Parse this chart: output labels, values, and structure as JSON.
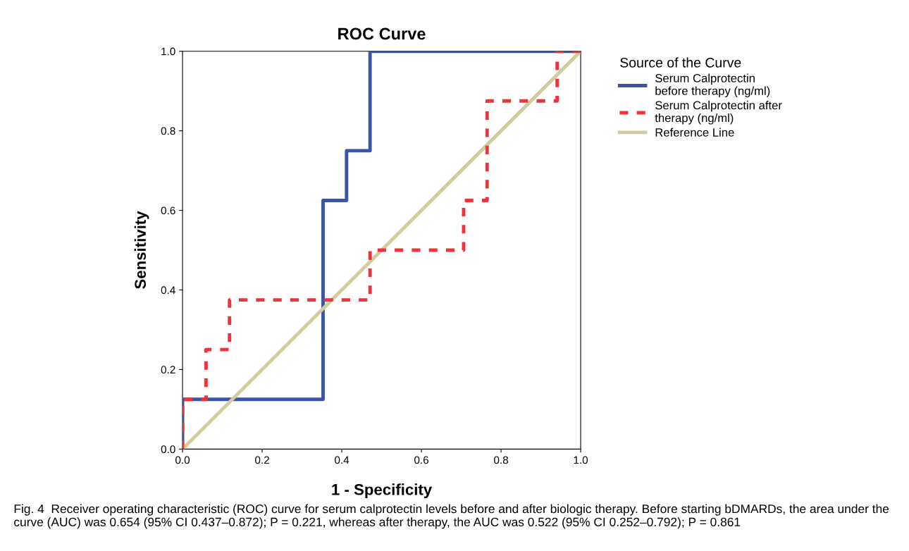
{
  "chart_data": {
    "type": "line",
    "title": "ROC Curve",
    "xlabel": "1 - Specificity",
    "ylabel": "Sensitivity",
    "legend_title": "Source of the Curve",
    "legend": "top right",
    "xlim": [
      0,
      1
    ],
    "ylim": [
      0,
      1
    ],
    "xticks": [
      {
        "value": 0,
        "label": "0.0"
      },
      {
        "value": 0.2,
        "label": "0.2"
      },
      {
        "value": 0.4,
        "label": "0.4"
      },
      {
        "value": 0.6,
        "label": "0.6"
      },
      {
        "value": 0.8,
        "label": "0.8"
      },
      {
        "value": 1,
        "label": "1.0"
      }
    ],
    "yticks": [
      {
        "value": 0,
        "label": "0.0"
      },
      {
        "value": 0.2,
        "label": "0.2"
      },
      {
        "value": 0.4,
        "label": "0.4"
      },
      {
        "value": 0.6,
        "label": "0.6"
      },
      {
        "value": 0.8,
        "label": "0.8"
      },
      {
        "value": 1,
        "label": "1.0"
      }
    ],
    "grid": false,
    "series": [
      {
        "name": "Serum Calprotectin\nbefore therapy (ng/ml)",
        "color": "#3b54a5",
        "line_style": "solid",
        "x": [
          0,
          0,
          0.353,
          0.353,
          0.412,
          0.412,
          0.471,
          0.471,
          1
        ],
        "values": [
          0,
          0.125,
          0.125,
          0.625,
          0.625,
          0.75,
          0.75,
          1,
          1
        ]
      },
      {
        "name": "Serum Calprotectin after\ntherapy (ng/ml)",
        "color": "#f0323c",
        "line_style": "dashed",
        "x": [
          0,
          0,
          0.059,
          0.059,
          0.118,
          0.118,
          0.471,
          0.471,
          0.706,
          0.706,
          0.765,
          0.765,
          0.941,
          0.941,
          1
        ],
        "values": [
          0,
          0.125,
          0.125,
          0.25,
          0.25,
          0.375,
          0.375,
          0.5,
          0.5,
          0.625,
          0.625,
          0.875,
          0.875,
          1,
          1
        ]
      },
      {
        "name": "Reference Line",
        "color": "#d3cb9b",
        "line_style": "solid",
        "x": [
          0,
          1
        ],
        "values": [
          0,
          1
        ]
      }
    ],
    "annotations": [
      "Fig. 4  Receiver operating characteristic (ROC) curve for serum calprotectin levels before and after biologic therapy. Before starting bDMARDs, the area under the curve (AUC) was 0.654 (95% CI 0.437–0.872); P = 0.221, whereas after therapy, the AUC was 0.522 (95% CI 0.252–0.792); P = 0.861"
    ]
  }
}
